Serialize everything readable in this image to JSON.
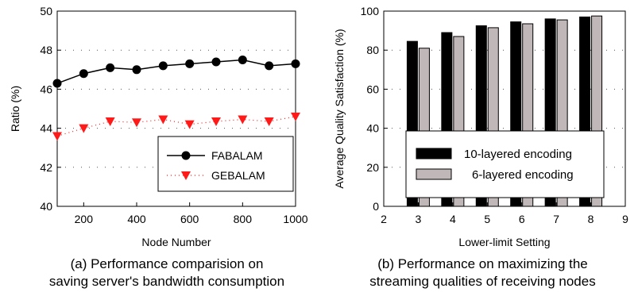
{
  "captions": {
    "a_line1": "(a) Performance comparision on",
    "a_line2": "saving server's bandwidth consumption",
    "b_line1": "(b) Performance on maximizing the",
    "b_line2": "streaming qualities of receiving nodes"
  },
  "chart_data": [
    {
      "type": "line",
      "title": "",
      "xlabel": "Node Number",
      "ylabel": "Ratio (%)",
      "xlim": [
        100,
        1000
      ],
      "ylim": [
        40,
        50
      ],
      "xticks": [
        200,
        400,
        600,
        800,
        1000
      ],
      "yticks": [
        40,
        42,
        44,
        46,
        48,
        50
      ],
      "grid": "dotted horizontal",
      "legend_position": "lower-right",
      "x": [
        100,
        200,
        300,
        400,
        500,
        600,
        700,
        800,
        900,
        1000
      ],
      "series": [
        {
          "name": "FABALAM",
          "marker": "circle",
          "color": "#000000",
          "values": [
            46.3,
            46.8,
            47.1,
            47.0,
            47.2,
            47.3,
            47.4,
            47.5,
            47.2,
            47.3
          ]
        },
        {
          "name": "GEBALAM",
          "marker": "triangle-down",
          "color": "#ff1a1a",
          "values": [
            43.6,
            44.0,
            44.35,
            44.3,
            44.45,
            44.2,
            44.35,
            44.45,
            44.35,
            44.6
          ]
        }
      ]
    },
    {
      "type": "bar",
      "title": "",
      "xlabel": "Lower-limit Setting",
      "ylabel": "Average Quality Satisfaction (%)",
      "xlim": [
        2,
        9
      ],
      "ylim": [
        0,
        100
      ],
      "xticks": [
        2,
        3,
        4,
        5,
        6,
        7,
        8,
        9
      ],
      "yticks": [
        0,
        20,
        40,
        60,
        80,
        100
      ],
      "grid": "dotted horizontal",
      "legend_position": "lower-center",
      "categories": [
        3,
        4,
        5,
        6,
        7,
        8
      ],
      "series": [
        {
          "name": "10-layered encoding",
          "color": "#000000",
          "values": [
            84.5,
            89,
            92.5,
            94.5,
            96,
            97
          ]
        },
        {
          "name": "6-layered encoding",
          "color": "#c0b8b8",
          "values": [
            81,
            87,
            91.5,
            93.5,
            95.5,
            97.5
          ]
        }
      ]
    }
  ]
}
